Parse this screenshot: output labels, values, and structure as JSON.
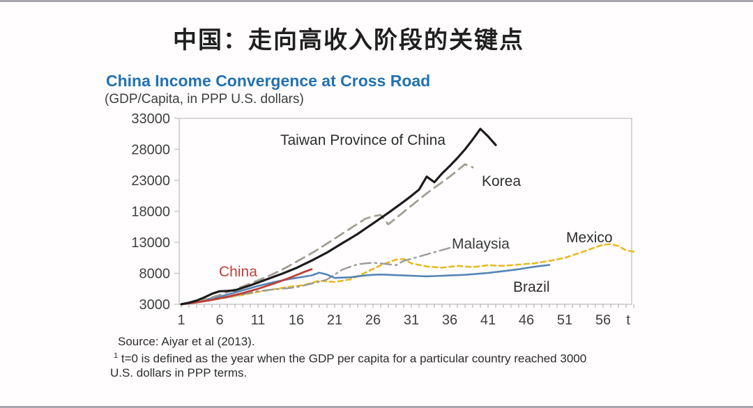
{
  "slide": {
    "title_cn": "中国：走向高收入阶段的关键点",
    "source_line": "Source: Aiyar et al (2013).",
    "footnote_sup": "1",
    "footnote_line1": " t=0 is defined as the year when the GDP per capita for a particular country reached 3000",
    "footnote_line2": "U.S. dollars in PPP terms."
  },
  "chart_data": {
    "type": "line",
    "title": "China Income Convergence at Cross Road",
    "subtitle": "(GDP/Capita, in PPP U.S. dollars)",
    "xlabel": "t",
    "x_axis_suffix_label": "t",
    "x_ticks": [
      1,
      6,
      11,
      16,
      21,
      26,
      31,
      36,
      41,
      46,
      51,
      56
    ],
    "y_ticks": [
      3000,
      8000,
      13000,
      18000,
      23000,
      28000,
      33000
    ],
    "xlim": [
      1,
      60
    ],
    "ylim": [
      3000,
      33000
    ],
    "grid": false,
    "legend_position": "inline-labels",
    "frame_color": "#c8c8c8",
    "axis_text_color": "#3f3f3f",
    "series": [
      {
        "id": "mexico",
        "name": "Mexico",
        "color": "#e9b824",
        "style": "dashed-short",
        "width": 2.6,
        "points": [
          [
            1,
            3000
          ],
          [
            2,
            3150
          ],
          [
            3,
            3300
          ],
          [
            4,
            3500
          ],
          [
            5,
            3700
          ],
          [
            6,
            3900
          ],
          [
            7,
            4100
          ],
          [
            8,
            4300
          ],
          [
            9,
            4500
          ],
          [
            10,
            4750
          ],
          [
            11,
            5000
          ],
          [
            12,
            5200
          ],
          [
            13,
            5400
          ],
          [
            14,
            5600
          ],
          [
            15,
            5800
          ],
          [
            16,
            5950
          ],
          [
            17,
            6100
          ],
          [
            18,
            6450
          ],
          [
            19,
            6800
          ],
          [
            20,
            6700
          ],
          [
            21,
            6600
          ],
          [
            22,
            6800
          ],
          [
            23,
            7000
          ],
          [
            24,
            7550
          ],
          [
            25,
            8100
          ],
          [
            26,
            8700
          ],
          [
            27,
            9300
          ],
          [
            28,
            9750
          ],
          [
            29,
            10200
          ],
          [
            30,
            10300
          ],
          [
            31,
            9600
          ],
          [
            32,
            9350
          ],
          [
            33,
            9100
          ],
          [
            34,
            9000
          ],
          [
            35,
            8900
          ],
          [
            36,
            9050
          ],
          [
            37,
            9200
          ],
          [
            38,
            9100
          ],
          [
            39,
            9000
          ],
          [
            40,
            9150
          ],
          [
            41,
            9300
          ],
          [
            42,
            9250
          ],
          [
            43,
            9200
          ],
          [
            44,
            9300
          ],
          [
            45,
            9400
          ],
          [
            46,
            9500
          ],
          [
            47,
            9600
          ],
          [
            48,
            9800
          ],
          [
            49,
            10000
          ],
          [
            50,
            10250
          ],
          [
            51,
            10500
          ],
          [
            52,
            10900
          ],
          [
            53,
            11300
          ],
          [
            54,
            11750
          ],
          [
            55,
            12200
          ],
          [
            56,
            12600
          ],
          [
            57,
            12700
          ],
          [
            58,
            12400
          ],
          [
            59,
            11700
          ],
          [
            60,
            11500
          ]
        ]
      },
      {
        "id": "malaysia",
        "name": "Malaysia",
        "color": "#9a9a9a",
        "style": "dashdot",
        "width": 2.4,
        "points": [
          [
            1,
            3000
          ],
          [
            2,
            3150
          ],
          [
            3,
            3300
          ],
          [
            4,
            3500
          ],
          [
            5,
            3700
          ],
          [
            6,
            3900
          ],
          [
            7,
            4100
          ],
          [
            8,
            4350
          ],
          [
            9,
            4600
          ],
          [
            10,
            4850
          ],
          [
            11,
            5100
          ],
          [
            12,
            5250
          ],
          [
            13,
            5400
          ],
          [
            14,
            5500
          ],
          [
            15,
            5600
          ],
          [
            16,
            5750
          ],
          [
            17,
            6050
          ],
          [
            18,
            6350
          ],
          [
            19,
            6650
          ],
          [
            20,
            7000
          ],
          [
            21,
            7800
          ],
          [
            22,
            8600
          ],
          [
            23,
            9050
          ],
          [
            24,
            9450
          ],
          [
            25,
            9600
          ],
          [
            26,
            9700
          ],
          [
            27,
            9600
          ],
          [
            28,
            9450
          ],
          [
            29,
            9300
          ],
          [
            30,
            10000
          ],
          [
            31,
            10350
          ],
          [
            32,
            10700
          ],
          [
            33,
            11050
          ],
          [
            34,
            11400
          ],
          [
            35,
            11750
          ],
          [
            36,
            12100
          ]
        ]
      },
      {
        "id": "brazil",
        "name": "Brazil",
        "color": "#5585b5",
        "style": "solid",
        "width": 2.6,
        "points": [
          [
            1,
            3000
          ],
          [
            2,
            3200
          ],
          [
            3,
            3450
          ],
          [
            4,
            3700
          ],
          [
            5,
            3950
          ],
          [
            6,
            4250
          ],
          [
            7,
            4550
          ],
          [
            8,
            4900
          ],
          [
            9,
            5250
          ],
          [
            10,
            5600
          ],
          [
            11,
            5950
          ],
          [
            12,
            6250
          ],
          [
            13,
            6550
          ],
          [
            14,
            6800
          ],
          [
            15,
            7050
          ],
          [
            16,
            7250
          ],
          [
            17,
            7450
          ],
          [
            18,
            7650
          ],
          [
            19,
            8100
          ],
          [
            20,
            7800
          ],
          [
            21,
            7250
          ],
          [
            22,
            7300
          ],
          [
            23,
            7350
          ],
          [
            24,
            7500
          ],
          [
            25,
            7650
          ],
          [
            26,
            7750
          ],
          [
            27,
            7800
          ],
          [
            28,
            7750
          ],
          [
            29,
            7700
          ],
          [
            30,
            7650
          ],
          [
            31,
            7600
          ],
          [
            32,
            7550
          ],
          [
            33,
            7500
          ],
          [
            34,
            7550
          ],
          [
            35,
            7600
          ],
          [
            36,
            7650
          ],
          [
            37,
            7700
          ],
          [
            38,
            7750
          ],
          [
            39,
            7850
          ],
          [
            40,
            7950
          ],
          [
            41,
            8050
          ],
          [
            42,
            8200
          ],
          [
            43,
            8350
          ],
          [
            44,
            8500
          ],
          [
            45,
            8650
          ],
          [
            46,
            8850
          ],
          [
            47,
            9050
          ],
          [
            48,
            9200
          ],
          [
            49,
            9350
          ]
        ]
      },
      {
        "id": "korea",
        "name": "Korea",
        "color": "#a19e92",
        "style": "dashed",
        "width": 2.8,
        "points": [
          [
            1,
            3000
          ],
          [
            2,
            3200
          ],
          [
            3,
            3450
          ],
          [
            4,
            3750
          ],
          [
            5,
            4100
          ],
          [
            6,
            4500
          ],
          [
            7,
            4950
          ],
          [
            8,
            5400
          ],
          [
            9,
            5850
          ],
          [
            10,
            6350
          ],
          [
            11,
            6850
          ],
          [
            12,
            7350
          ],
          [
            13,
            7900
          ],
          [
            14,
            8500
          ],
          [
            15,
            9150
          ],
          [
            16,
            9850
          ],
          [
            17,
            10550
          ],
          [
            18,
            11250
          ],
          [
            19,
            12000
          ],
          [
            20,
            12800
          ],
          [
            21,
            13600
          ],
          [
            22,
            14400
          ],
          [
            23,
            15200
          ],
          [
            24,
            16000
          ],
          [
            25,
            16800
          ],
          [
            26,
            17200
          ],
          [
            27,
            17400
          ],
          [
            28,
            15900
          ],
          [
            29,
            16900
          ],
          [
            30,
            17900
          ],
          [
            31,
            18900
          ],
          [
            32,
            19900
          ],
          [
            33,
            20900
          ],
          [
            34,
            21800
          ],
          [
            35,
            22700
          ],
          [
            36,
            23600
          ],
          [
            37,
            24600
          ],
          [
            38,
            25600
          ],
          [
            39,
            25100
          ]
        ]
      },
      {
        "id": "china",
        "name": "China",
        "color": "#bf3f38",
        "style": "solid",
        "width": 2.8,
        "points": [
          [
            1,
            3000
          ],
          [
            2,
            3150
          ],
          [
            3,
            3300
          ],
          [
            4,
            3500
          ],
          [
            5,
            3700
          ],
          [
            6,
            3950
          ],
          [
            7,
            4200
          ],
          [
            8,
            4500
          ],
          [
            9,
            4800
          ],
          [
            10,
            5150
          ],
          [
            11,
            5500
          ],
          [
            12,
            5900
          ],
          [
            13,
            6300
          ],
          [
            14,
            6750
          ],
          [
            15,
            7200
          ],
          [
            16,
            7700
          ],
          [
            17,
            8200
          ],
          [
            18,
            8650
          ]
        ]
      },
      {
        "id": "taiwan",
        "name": "Taiwan Province of China",
        "color": "#1c1c1c",
        "style": "solid",
        "width": 3.2,
        "points": [
          [
            1,
            3000
          ],
          [
            2,
            3250
          ],
          [
            3,
            3600
          ],
          [
            4,
            4100
          ],
          [
            5,
            4700
          ],
          [
            6,
            5100
          ],
          [
            7,
            5150
          ],
          [
            8,
            5250
          ],
          [
            9,
            5650
          ],
          [
            10,
            6050
          ],
          [
            11,
            6500
          ],
          [
            12,
            6950
          ],
          [
            13,
            7400
          ],
          [
            14,
            7850
          ],
          [
            15,
            8350
          ],
          [
            16,
            8850
          ],
          [
            17,
            9450
          ],
          [
            18,
            10050
          ],
          [
            19,
            10700
          ],
          [
            20,
            11350
          ],
          [
            21,
            12100
          ],
          [
            22,
            12850
          ],
          [
            23,
            13600
          ],
          [
            24,
            14350
          ],
          [
            25,
            15200
          ],
          [
            26,
            16050
          ],
          [
            27,
            16900
          ],
          [
            28,
            17750
          ],
          [
            29,
            18650
          ],
          [
            30,
            19550
          ],
          [
            31,
            20500
          ],
          [
            32,
            21500
          ],
          [
            33,
            23600
          ],
          [
            34,
            22700
          ],
          [
            35,
            24100
          ],
          [
            36,
            25300
          ],
          [
            37,
            26600
          ],
          [
            38,
            28000
          ],
          [
            39,
            29600
          ],
          [
            40,
            31300
          ],
          [
            41,
            30100
          ],
          [
            42,
            28700
          ]
        ]
      }
    ]
  }
}
